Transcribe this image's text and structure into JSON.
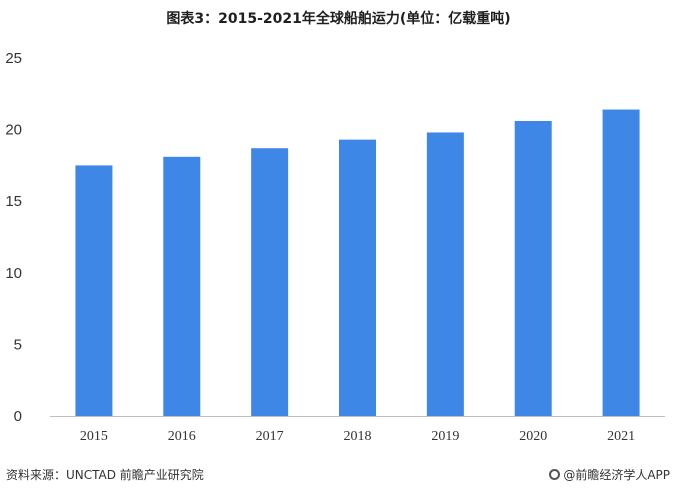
{
  "chart_data": {
    "type": "bar",
    "title": "图表3：2015-2021年全球船舶运力(单位：亿载重吨)",
    "categories": [
      "2015",
      "2016",
      "2017",
      "2018",
      "2019",
      "2020",
      "2021"
    ],
    "values": [
      17.5,
      18.1,
      18.7,
      19.3,
      19.8,
      20.6,
      21.4
    ],
    "ylim": [
      0,
      25
    ],
    "yticks": [
      "0",
      "5",
      "10",
      "15",
      "20",
      "25"
    ],
    "grid": false,
    "bar_color": "#3f87e6"
  },
  "footer": {
    "source": "资料来源：UNCTAD 前瞻产业研究院",
    "brand": "@前瞻经济学人APP"
  }
}
